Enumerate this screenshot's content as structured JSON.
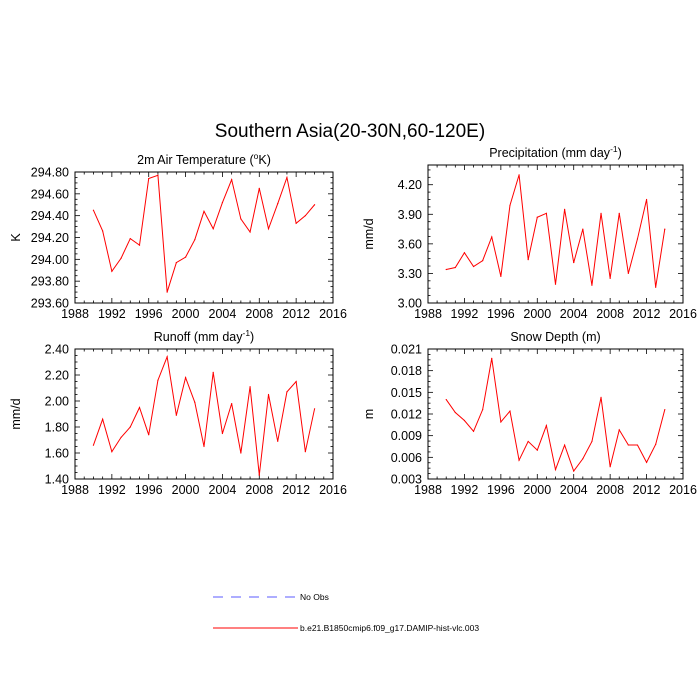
{
  "figure_title": "Southern Asia(20-30N,60-120E)",
  "legend": {
    "no_obs_label": "No Obs",
    "model_label": "b.e21.B1850cmip6.f09_g17.DAMIP-hist-vlc.003",
    "no_obs_color": "#5b5bff",
    "model_color": "#ff0000"
  },
  "chart_data": [
    {
      "type": "line",
      "title": "2m Air Temperature (",
      "title_sup": "o",
      "title_after": "K)",
      "ylabel": "K",
      "xlim": [
        1988,
        2016
      ],
      "ylim": [
        293.6,
        294.8
      ],
      "x_ticks": [
        1988,
        1992,
        1996,
        2000,
        2004,
        2008,
        2012,
        2016
      ],
      "y_ticks": [
        "293.60",
        "293.80",
        "294.00",
        "294.20",
        "294.40",
        "294.60",
        "294.80"
      ],
      "x": [
        1990,
        1991,
        1992,
        1993,
        1994,
        1995,
        1996,
        1997,
        1998,
        1999,
        2000,
        2001,
        2002,
        2003,
        2004,
        2005,
        2006,
        2007,
        2008,
        2009,
        2010,
        2011,
        2012,
        2013,
        2014
      ],
      "values": [
        294.45,
        294.26,
        293.89,
        294.01,
        294.19,
        294.13,
        294.74,
        294.77,
        293.7,
        293.97,
        294.02,
        294.18,
        294.44,
        294.28,
        294.52,
        294.73,
        294.37,
        294.25,
        294.65,
        294.28,
        294.51,
        294.75,
        294.33,
        294.4,
        294.5
      ],
      "color": "#ff0000"
    },
    {
      "type": "line",
      "title": "Precipitation (mm day",
      "title_sup": "-1",
      "title_after": ")",
      "ylabel": "mm/d",
      "xlim": [
        1988,
        2016
      ],
      "ylim": [
        3.0,
        4.4
      ],
      "x_ticks": [
        1988,
        1992,
        1996,
        2000,
        2004,
        2008,
        2012,
        2016
      ],
      "y_ticks": [
        "3.00",
        "3.30",
        "3.60",
        "3.90",
        "4.20"
      ],
      "y_tick_values": [
        3.0,
        3.3,
        3.6,
        3.9,
        4.2
      ],
      "x": [
        1990,
        1991,
        1992,
        1993,
        1994,
        1995,
        1996,
        1997,
        1998,
        1999,
        2000,
        2001,
        2002,
        2003,
        2004,
        2005,
        2006,
        2007,
        2008,
        2009,
        2010,
        2011,
        2012,
        2013,
        2014
      ],
      "values": [
        3.34,
        3.36,
        3.51,
        3.37,
        3.43,
        3.67,
        3.27,
        3.99,
        4.3,
        3.44,
        3.87,
        3.91,
        3.19,
        3.95,
        3.41,
        3.75,
        3.18,
        3.91,
        3.25,
        3.91,
        3.3,
        3.65,
        4.05,
        3.16,
        3.75
      ],
      "color": "#ff0000"
    },
    {
      "type": "line",
      "title": "Runoff (mm day",
      "title_sup": "-1",
      "title_after": ")",
      "ylabel": "mm/d",
      "xlim": [
        1988,
        2016
      ],
      "ylim": [
        1.4,
        2.4
      ],
      "x_ticks": [
        1988,
        1992,
        1996,
        2000,
        2004,
        2008,
        2012,
        2016
      ],
      "y_ticks": [
        "1.40",
        "1.60",
        "1.80",
        "2.00",
        "2.20",
        "2.40"
      ],
      "x": [
        1990,
        1991,
        1992,
        1993,
        1994,
        1995,
        1996,
        1997,
        1998,
        1999,
        2000,
        2001,
        2002,
        2003,
        2004,
        2005,
        2006,
        2007,
        2008,
        2009,
        2010,
        2011,
        2012,
        2013,
        2014
      ],
      "values": [
        1.66,
        1.86,
        1.61,
        1.72,
        1.8,
        1.95,
        1.74,
        2.16,
        2.34,
        1.89,
        2.18,
        1.99,
        1.65,
        2.22,
        1.75,
        1.98,
        1.6,
        2.11,
        1.43,
        2.05,
        1.69,
        2.07,
        2.15,
        1.61,
        1.94
      ],
      "color": "#ff0000"
    },
    {
      "type": "line",
      "title": "Snow Depth (m)",
      "title_sup": "",
      "title_after": "",
      "ylabel": "m",
      "xlim": [
        1988,
        2016
      ],
      "ylim": [
        0.003,
        0.021
      ],
      "x_ticks": [
        1988,
        1992,
        1996,
        2000,
        2004,
        2008,
        2012,
        2016
      ],
      "y_ticks": [
        "0.003",
        "0.006",
        "0.009",
        "0.012",
        "0.015",
        "0.018",
        "0.021"
      ],
      "x": [
        1990,
        1991,
        1992,
        1993,
        1994,
        1995,
        1996,
        1997,
        1998,
        1999,
        2000,
        2001,
        2002,
        2003,
        2004,
        2005,
        2006,
        2007,
        2008,
        2009,
        2010,
        2011,
        2012,
        2013,
        2014
      ],
      "values": [
        0.014,
        0.0122,
        0.0111,
        0.0096,
        0.0126,
        0.0197,
        0.0109,
        0.0124,
        0.0056,
        0.0082,
        0.007,
        0.0104,
        0.0043,
        0.0077,
        0.0041,
        0.0058,
        0.0082,
        0.0143,
        0.0047,
        0.0098,
        0.0077,
        0.0077,
        0.0053,
        0.0078,
        0.0126
      ],
      "color": "#ff0000"
    }
  ]
}
